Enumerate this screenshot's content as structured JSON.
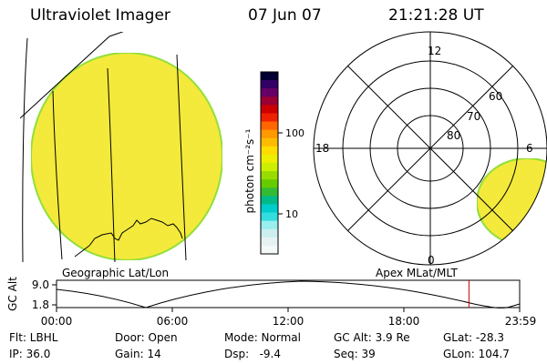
{
  "header": {
    "instrument": "Ultraviolet Imager",
    "date": "07 Jun 07",
    "time": "21:21:28 UT"
  },
  "colorbar": {
    "label": "photon cm⁻²s⁻¹",
    "ticks": [
      "100",
      "10"
    ],
    "colors": [
      "#000033",
      "#330066",
      "#660066",
      "#990033",
      "#cc0000",
      "#ee2200",
      "#ff6600",
      "#ff9900",
      "#ffbb00",
      "#ffdd00",
      "#eeee00",
      "#ccee00",
      "#99dd00",
      "#66cc00",
      "#33bb33",
      "#00bb88",
      "#00cccc",
      "#33dddd",
      "#99eeee",
      "#cceeee",
      "#e6f2f2",
      "#f4f8f8"
    ]
  },
  "panels": {
    "geographic_label": "Geographic Lat/Lon",
    "apex_label": "Apex MLat/MLT",
    "polar": {
      "mlt_labels": [
        "12",
        "18",
        "6",
        "0"
      ],
      "lat_labels": [
        "60",
        "70",
        "80"
      ]
    },
    "disk_color": "#f3ea3c",
    "disk_edge_color": "#8ddf3a"
  },
  "timeline": {
    "axis_label": "GC Alt",
    "y_ticks": [
      "9.0",
      "1.8"
    ],
    "x_ticks": [
      "00:00",
      "06:00",
      "12:00",
      "18:00",
      "23:59"
    ],
    "marker_color": "#cc0000",
    "marker_time_hours": 21.36
  },
  "status": {
    "filter": "Flt: LBHL",
    "ip": "IP: 36.0",
    "door": "Door: Open",
    "gain": "Gain: 14",
    "mode": "Mode: Normal",
    "dsp": "Dsp:   -9.4",
    "gc_alt": "GC Alt: 3.9 Re",
    "seq": "Seq: 39",
    "glat": "GLat: -28.3",
    "glon": "GLon: 104.7"
  }
}
